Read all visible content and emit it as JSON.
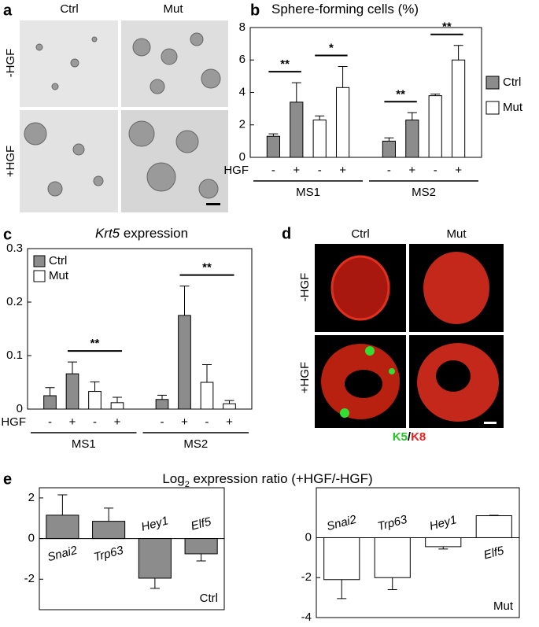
{
  "panels": {
    "a": {
      "label": "a",
      "columns": [
        "Ctrl",
        "Mut"
      ],
      "rows": [
        "-HGF",
        "+HGF"
      ]
    },
    "d": {
      "label": "d",
      "columns": [
        "Ctrl",
        "Mut"
      ],
      "rows": [
        "-HGF",
        "+HGF"
      ],
      "stain": [
        {
          "text": "K5",
          "color": "#22c422"
        },
        {
          "text": "/",
          "color": "#000000"
        },
        {
          "text": "K8",
          "color": "#e8201c"
        }
      ]
    },
    "e": {
      "label": "e",
      "title": [
        {
          "text": "Log"
        },
        {
          "text": "2",
          "sub": true
        },
        {
          "text": " expression ratio (+HGF/-HGF)"
        }
      ]
    }
  },
  "chart_data": [
    {
      "type": "bar",
      "panel": "b",
      "title": [
        {
          "text": "Sphere-forming cells (%)"
        }
      ],
      "x_label": "HGF",
      "categories": [
        "-",
        "+",
        "-",
        "+",
        "-",
        "+",
        "-",
        "+"
      ],
      "groups": [
        "MS1",
        "MS2"
      ],
      "series": [
        {
          "name": "Ctrl",
          "color": "#8c8c8c",
          "values": [
            1.3,
            3.4,
            null,
            null,
            1.0,
            2.3,
            null,
            null
          ],
          "errors": [
            0.15,
            1.2,
            null,
            null,
            0.2,
            0.45,
            null,
            null
          ]
        },
        {
          "name": "Mut",
          "color": "#ffffff",
          "values": [
            null,
            null,
            2.3,
            4.3,
            null,
            null,
            3.8,
            6.0
          ],
          "errors": [
            null,
            null,
            0.25,
            1.3,
            null,
            null,
            0.1,
            0.9
          ]
        }
      ],
      "significance": [
        {
          "label": "**",
          "pair": [
            0,
            1
          ]
        },
        {
          "label": "*",
          "pair": [
            2,
            3
          ]
        },
        {
          "label": "**",
          "pair": [
            4,
            5
          ]
        },
        {
          "label": "**",
          "pair": [
            6,
            7
          ]
        }
      ],
      "ylim": [
        0,
        8
      ],
      "yticks": [
        0,
        2,
        4,
        6,
        8
      ],
      "legend": "right"
    },
    {
      "type": "bar",
      "panel": "c",
      "title": [
        {
          "text": "Krt5",
          "italic": true
        },
        {
          "text": " expression"
        }
      ],
      "x_label": "HGF",
      "categories": [
        "-",
        "+",
        "-",
        "+",
        "-",
        "+",
        "-",
        "+"
      ],
      "groups": [
        "MS1",
        "MS2"
      ],
      "series": [
        {
          "name": "Ctrl",
          "color": "#8c8c8c",
          "values": [
            0.025,
            0.066,
            null,
            null,
            0.018,
            0.175,
            null,
            null
          ],
          "errors": [
            0.015,
            0.022,
            null,
            null,
            0.008,
            0.055,
            null,
            null
          ]
        },
        {
          "name": "Mut",
          "color": "#ffffff",
          "values": [
            null,
            null,
            0.033,
            0.012,
            null,
            null,
            0.05,
            0.01
          ],
          "errors": [
            null,
            null,
            0.018,
            0.01,
            null,
            null,
            0.033,
            0.006
          ]
        }
      ],
      "significance": [
        {
          "label": "**",
          "pair": [
            1,
            3
          ]
        },
        {
          "label": "**",
          "pair": [
            5,
            7
          ]
        }
      ],
      "ylim": [
        0,
        0.3
      ],
      "yticks": [
        0,
        0.1,
        0.2,
        0.3
      ],
      "legend": "upper-left"
    },
    {
      "type": "bar",
      "categories": [
        "Snai2",
        "Trp63",
        "Hey1",
        "Elf5"
      ],
      "inline_labels": true,
      "series": [
        {
          "name": "Ctrl",
          "color": "#8c8c8c",
          "values": [
            1.15,
            0.85,
            -1.95,
            -0.75
          ],
          "errors": [
            1.0,
            0.65,
            0.5,
            0.35
          ]
        }
      ],
      "ylim": [
        -3.5,
        2.5
      ],
      "yticks": [
        -2,
        0,
        2
      ],
      "legend": "lower-right",
      "legend_swatch": false
    },
    {
      "type": "bar",
      "categories": [
        "Snai2",
        "Trp63",
        "Hey1",
        "Elf5"
      ],
      "inline_labels": true,
      "series": [
        {
          "name": "Mut",
          "color": "#ffffff",
          "values": [
            -2.1,
            -2.0,
            -0.45,
            1.1
          ],
          "errors": [
            0.95,
            0.6,
            0.12,
            0.02
          ]
        }
      ],
      "ylim": [
        -4,
        2.5
      ],
      "yticks": [
        -4,
        -2,
        0
      ],
      "legend": "lower-right",
      "legend_swatch": false
    }
  ]
}
